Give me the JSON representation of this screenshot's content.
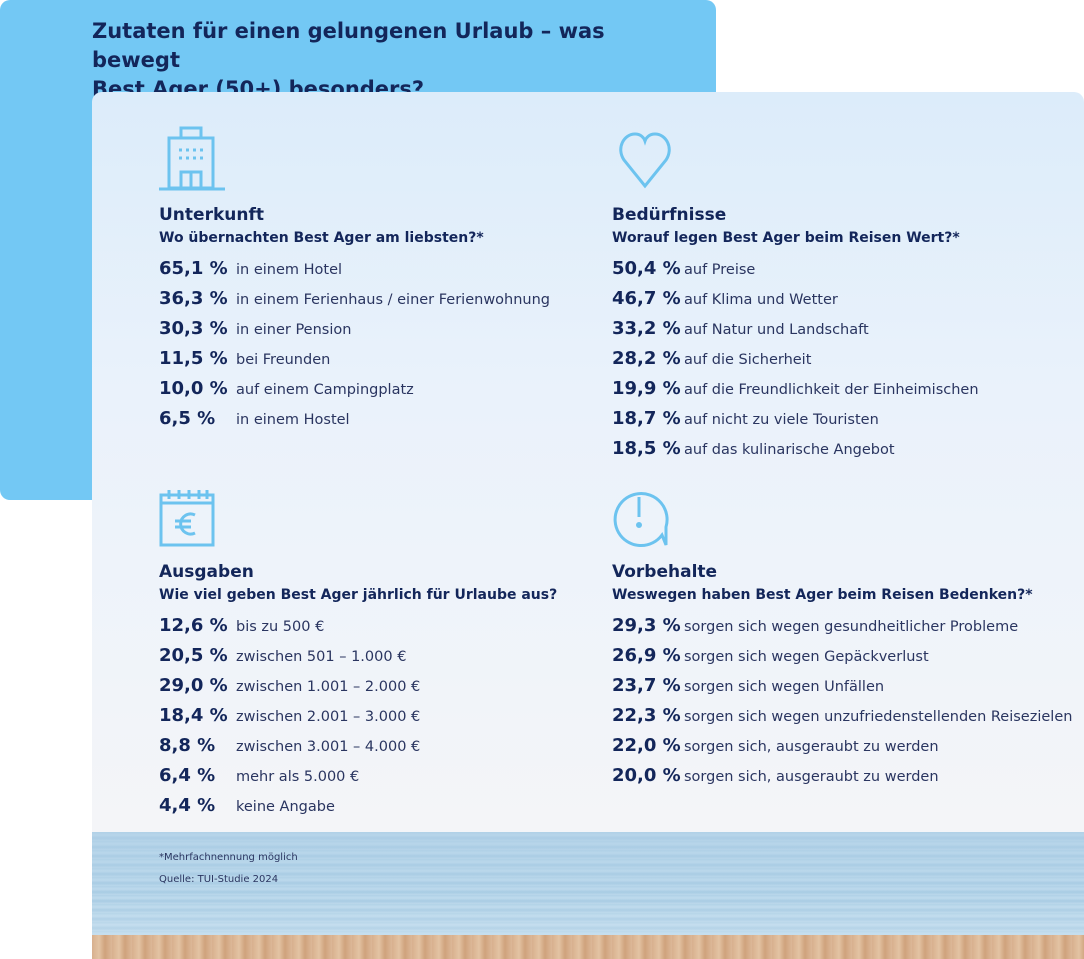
{
  "title_line1": "Zutaten für einen gelungenen Urlaub – was bewegt",
  "title_line2": "Best Ager (50+) besonders?",
  "colors": {
    "accent": "#73c8f4",
    "navy": "#13265a"
  },
  "sections": [
    {
      "icon": "building-icon",
      "heading": "Unterkunft",
      "question": "Wo übernachten Best Ager am liebsten?*",
      "items": [
        {
          "value": "65,1 %",
          "label": "in einem Hotel"
        },
        {
          "value": "36,3 %",
          "label": "in einem Ferienhaus / einer Ferienwohnung"
        },
        {
          "value": "30,3 %",
          "label": "in einer Pension"
        },
        {
          "value": "11,5 %",
          "label": "bei Freunden"
        },
        {
          "value": "10,0 %",
          "label": "auf einem Campingplatz"
        },
        {
          "value": "6,5 %",
          "label": "in einem Hostel"
        }
      ]
    },
    {
      "icon": "heart-icon",
      "heading": "Bedürfnisse",
      "question": "Worauf legen Best Ager beim Reisen Wert?*",
      "items": [
        {
          "value": "50,4 %",
          "label": "auf Preise"
        },
        {
          "value": "46,7 %",
          "label": "auf Klima und Wetter"
        },
        {
          "value": "33,2 %",
          "label": "auf Natur und Landschaft"
        },
        {
          "value": "28,2 %",
          "label": "auf die Sicherheit"
        },
        {
          "value": "19,9 %",
          "label": "auf die Freundlichkeit der Einheimischen"
        },
        {
          "value": "18,7 %",
          "label": "auf nicht zu viele Touristen"
        },
        {
          "value": "18,5 %",
          "label": "auf das kulinarische Angebot"
        }
      ]
    },
    {
      "icon": "calendar-euro-icon",
      "heading": "Ausgaben",
      "question": "Wie viel geben Best Ager jährlich für Urlaube aus?",
      "items": [
        {
          "value": "12,6 %",
          "label": "bis zu 500 €"
        },
        {
          "value": "20,5 %",
          "label": "zwischen 501 – 1.000 €"
        },
        {
          "value": "29,0 %",
          "label": "zwischen 1.001 – 2.000 €"
        },
        {
          "value": "18,4 %",
          "label": "zwischen 2.001 – 3.000 €"
        },
        {
          "value": "8,8 %",
          "label": "zwischen 3.001 – 4.000 €"
        },
        {
          "value": "6,4 %",
          "label": "mehr als 5.000 €"
        },
        {
          "value": "4,4 %",
          "label": "keine Angabe"
        }
      ]
    },
    {
      "icon": "speech-bubble-exclamation-icon",
      "heading": "Vorbehalte",
      "question": "Weswegen haben Best Ager beim Reisen Bedenken?*",
      "items": [
        {
          "value": "29,3 %",
          "label": "sorgen sich wegen gesundheitlicher Probleme"
        },
        {
          "value": "26,9 %",
          "label": "sorgen sich wegen Gepäckverlust"
        },
        {
          "value": "23,7 %",
          "label": "sorgen sich wegen Unfällen"
        },
        {
          "value": "22,3 %",
          "label": "sorgen sich wegen unzufriedenstellenden Reisezielen"
        },
        {
          "value": "22,0 %",
          "label": "sorgen sich, ausgeraubt zu werden"
        },
        {
          "value": "20,0 %",
          "label": "sorgen sich, ausgeraubt zu werden"
        }
      ]
    }
  ],
  "footnote": "*Mehrfachnennung möglich",
  "source": "Quelle: TUI-Studie 2024"
}
